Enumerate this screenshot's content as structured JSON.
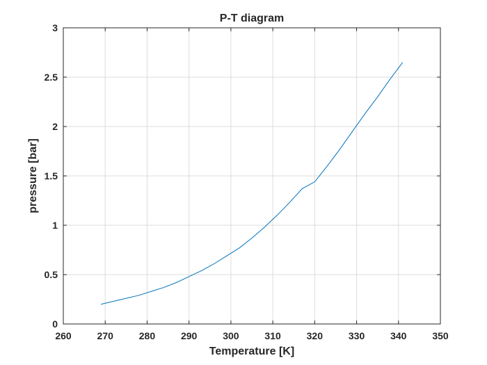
{
  "chart_data": {
    "type": "line",
    "title": "P-T diagram",
    "xlabel": "Temperature [K]",
    "ylabel": "pressure [bar]",
    "xlim": [
      260,
      350
    ],
    "ylim": [
      0,
      3
    ],
    "xticks": [
      "260",
      "270",
      "280",
      "290",
      "300",
      "310",
      "320",
      "330",
      "340",
      "350"
    ],
    "yticks": [
      "0",
      "0.5",
      "1",
      "1.5",
      "2",
      "2.5",
      "3"
    ],
    "grid": true,
    "legend": "none",
    "series": [
      {
        "color": "#0072bd",
        "x": [
          269,
          272,
          275,
          278,
          281,
          284,
          287,
          290,
          293,
          296,
          299,
          302,
          305,
          308,
          311,
          314,
          317,
          320,
          323,
          326,
          329,
          332,
          335,
          338,
          341
        ],
        "y": [
          0.2,
          0.23,
          0.26,
          0.29,
          0.33,
          0.37,
          0.42,
          0.48,
          0.54,
          0.61,
          0.69,
          0.77,
          0.87,
          0.98,
          1.1,
          1.23,
          1.37,
          1.44,
          1.6,
          1.77,
          1.95,
          2.13,
          2.3,
          2.48,
          2.65
        ]
      }
    ]
  }
}
